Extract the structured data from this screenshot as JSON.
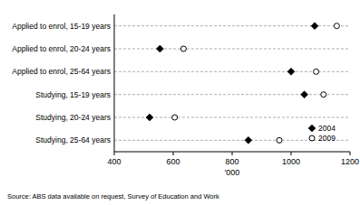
{
  "chart_data": {
    "type": "dot",
    "orientation": "horizontal",
    "categories": [
      "Applied to enrol, 15-19 years",
      "Applied to enrol, 20-24 years",
      "Applied to enrol, 25-64 years",
      "Studying, 15-19 years",
      "Studying, 20-24 years",
      "Studying, 25-64 years"
    ],
    "series": [
      {
        "name": "2004",
        "color": "#000000",
        "marker": "diamond",
        "values": [
          1080,
          555,
          1000,
          1045,
          520,
          855
        ]
      },
      {
        "name": "2009",
        "color": "#000000",
        "marker": "circle",
        "values": [
          1155,
          635,
          1085,
          1110,
          605,
          960
        ]
      }
    ],
    "x_label": "'000",
    "xlim": [
      400,
      1200
    ],
    "xticks": [
      400,
      600,
      800,
      1000,
      1200
    ],
    "grid": true,
    "legend": "bottom-right",
    "annotations": [
      "Source: ABS data available on request, Survey of Education and Work"
    ]
  }
}
